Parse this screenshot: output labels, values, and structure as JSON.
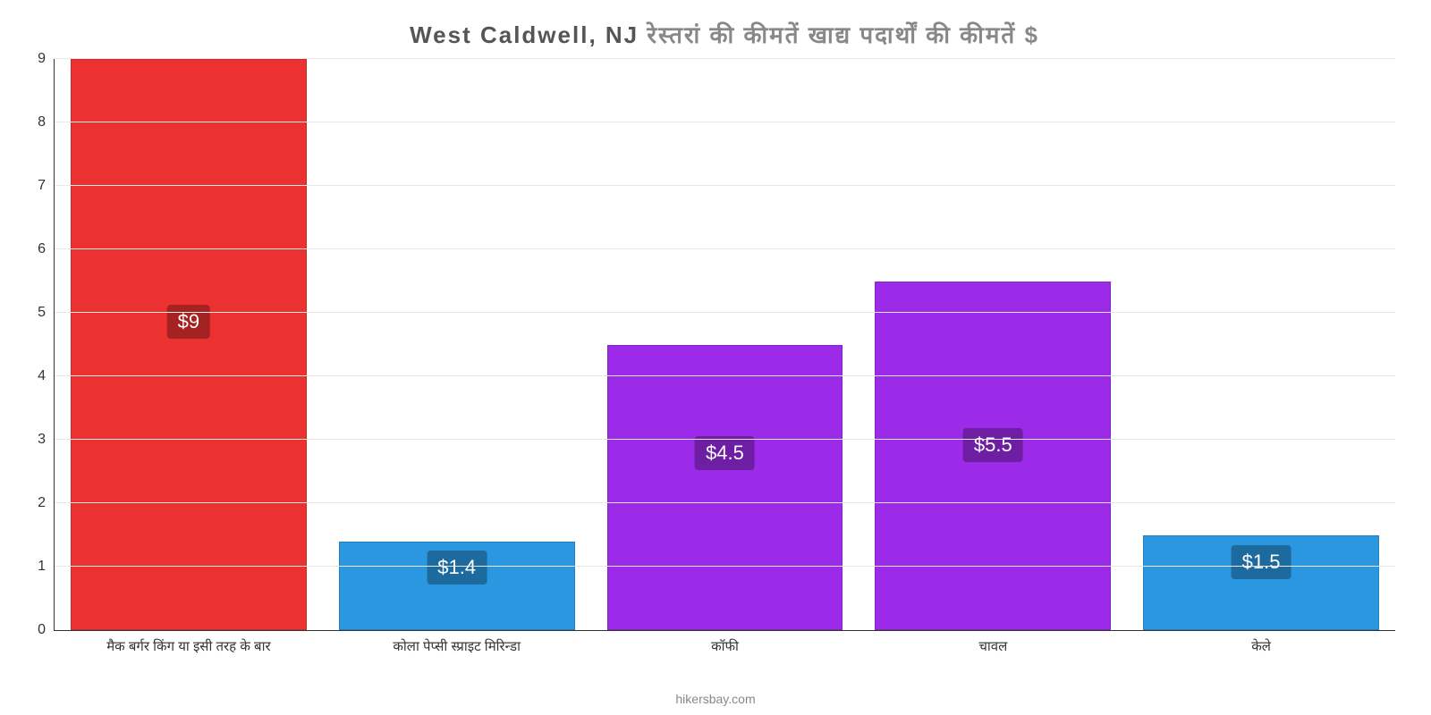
{
  "chart": {
    "type": "bar",
    "title_prefix": "West Caldwell, NJ",
    "title_suffix": "रेस्तरां की कीमतें खाद्य पदार्थों की कीमतें $",
    "title_fontsize": 26,
    "title_color_prefix": "#555555",
    "title_color_suffix": "#888888",
    "background_color": "#ffffff",
    "grid_color": "#e8e8e8",
    "axis_color": "#333333",
    "ylim_min": 0,
    "ylim_max": 9,
    "yticks": [
      0,
      1,
      2,
      3,
      4,
      5,
      6,
      7,
      8,
      9
    ],
    "tick_fontsize": 16,
    "bar_width_pct": 88,
    "attribution": "hikersbay.com",
    "series": [
      {
        "label": "मैक बर्गर किंग या इसी तरह के बार",
        "value": 9,
        "display": "$9",
        "bar_color": "#ec3131",
        "badge_color": "#a42222",
        "badge_top_pct": 43
      },
      {
        "label": "कोला पेप्सी स्प्राइट मिरिन्डा",
        "value": 1.4,
        "display": "$1.4",
        "bar_color": "#2a97e0",
        "badge_color": "#1c6a9e",
        "badge_top_pct": 10
      },
      {
        "label": "कॉफी",
        "value": 4.5,
        "display": "$4.5",
        "bar_color": "#9b2be8",
        "badge_color": "#6d1ea3",
        "badge_top_pct": 32
      },
      {
        "label": "चावल",
        "value": 5.5,
        "display": "$5.5",
        "bar_color": "#9b2be8",
        "badge_color": "#6d1ea3",
        "badge_top_pct": 42
      },
      {
        "label": "केले",
        "value": 1.5,
        "display": "$1.5",
        "bar_color": "#2a97e0",
        "badge_color": "#1c6a9e",
        "badge_top_pct": 10
      }
    ]
  }
}
